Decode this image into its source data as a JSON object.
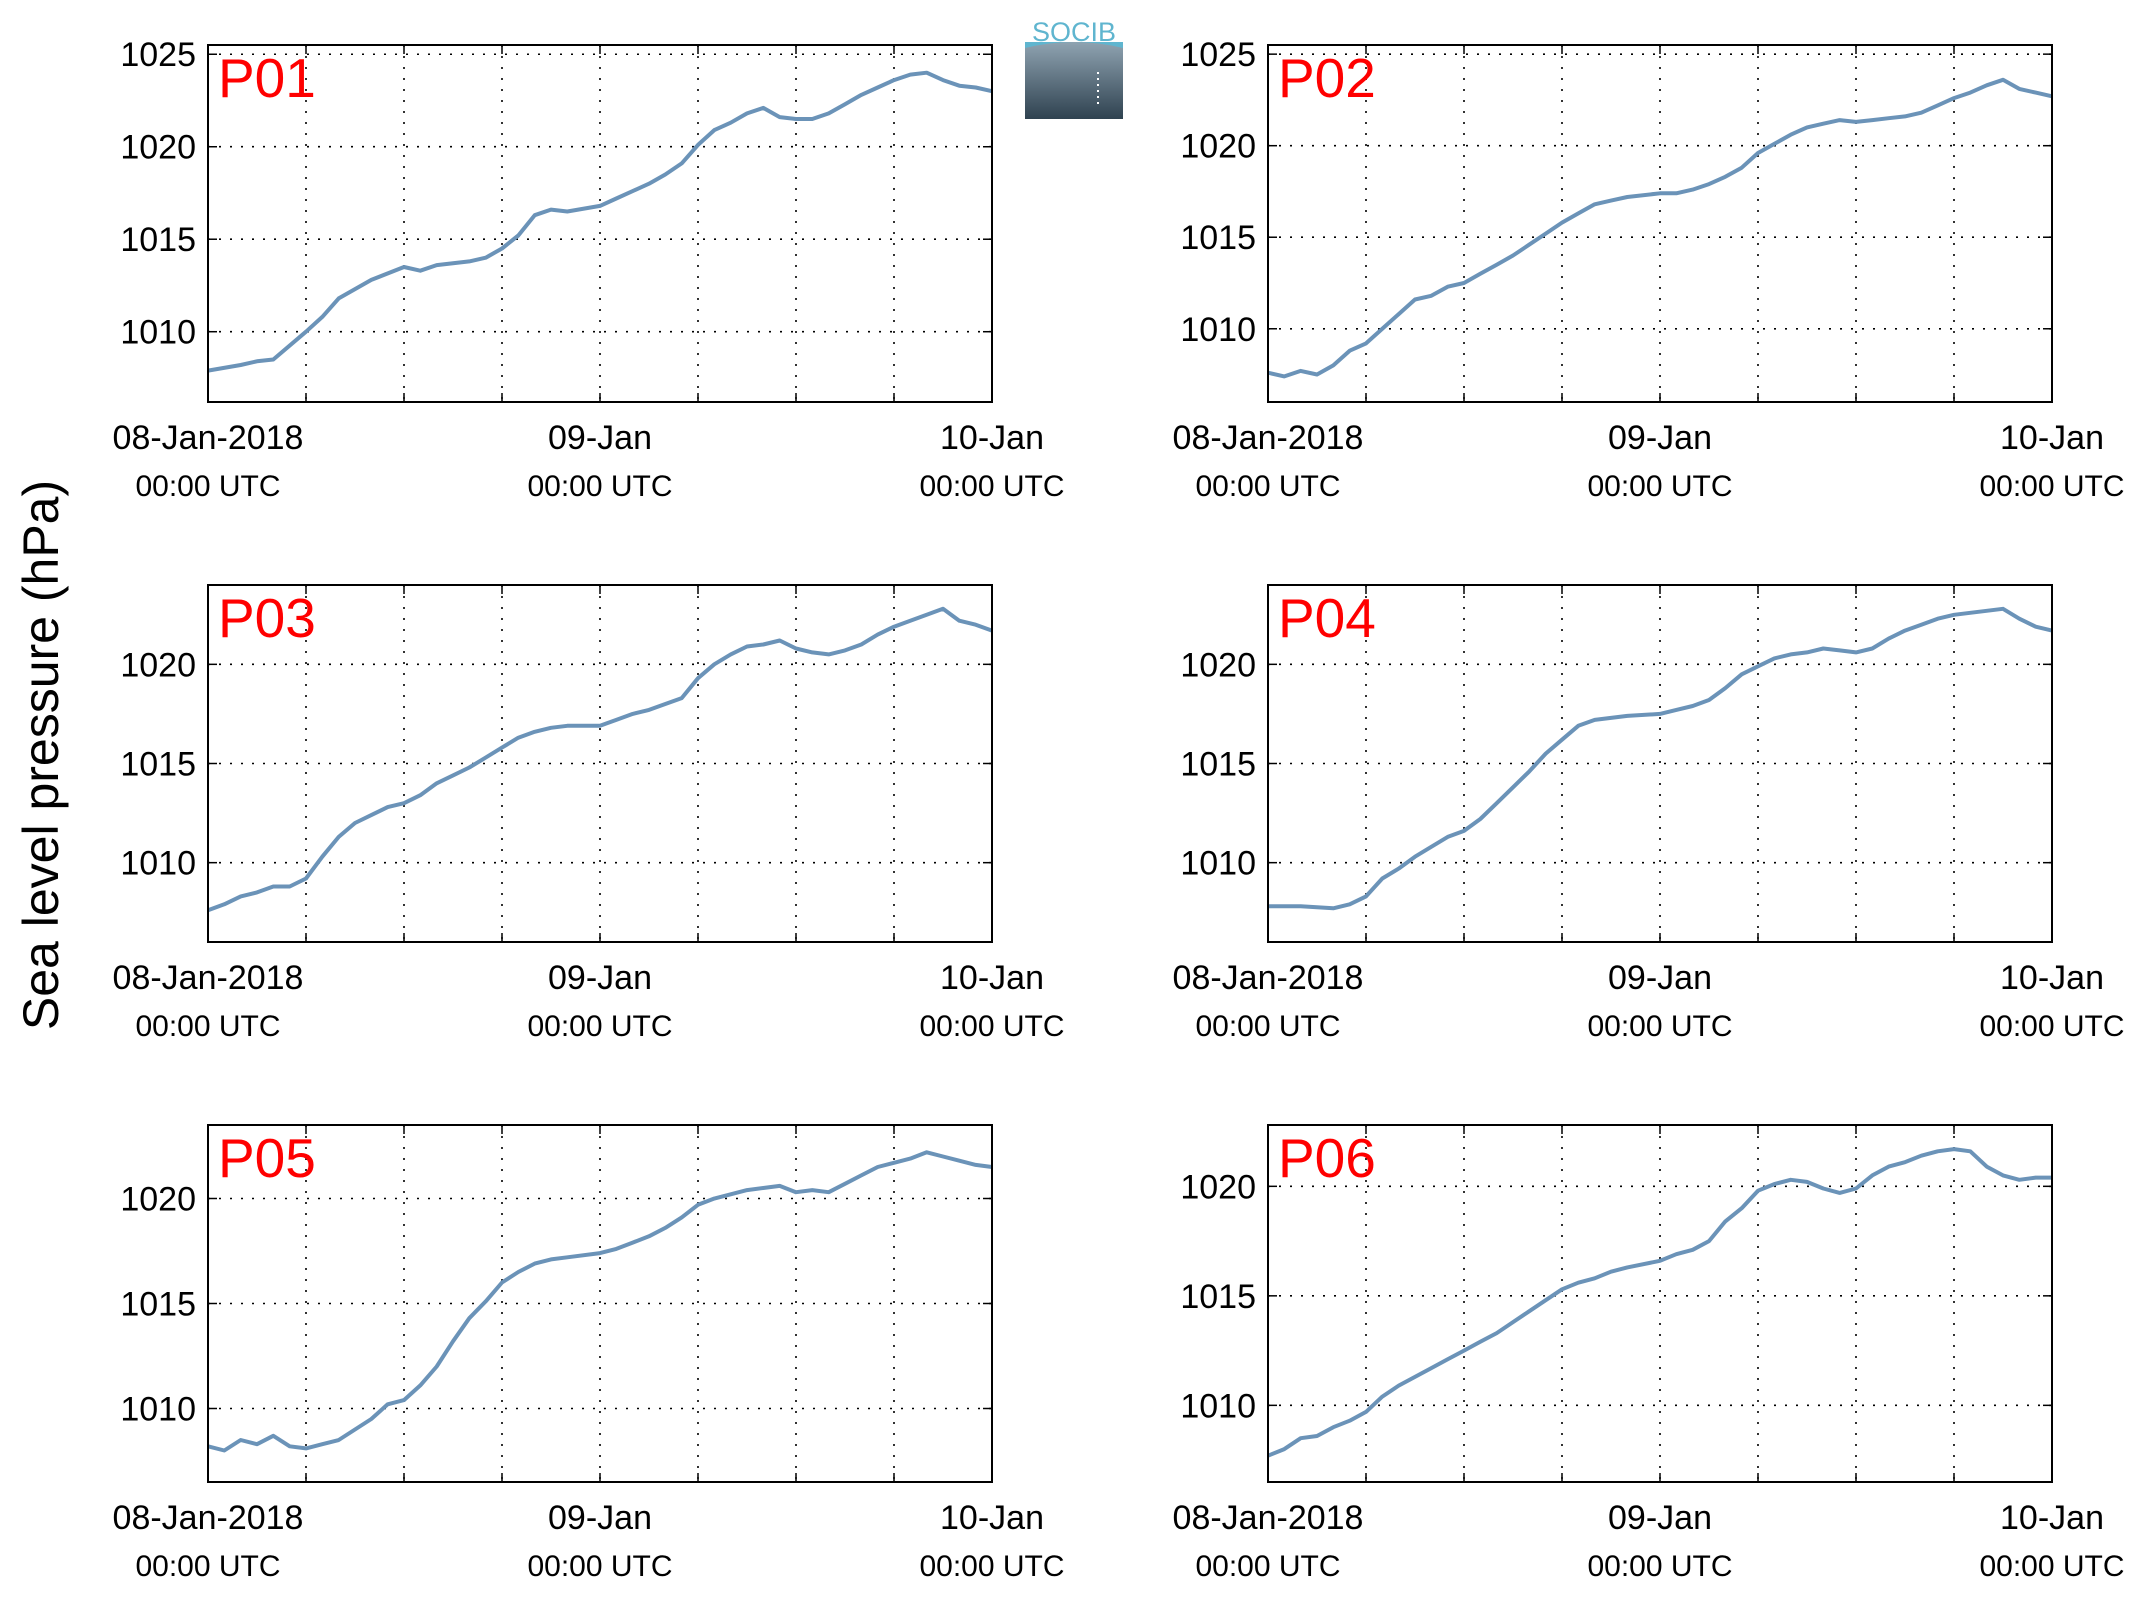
{
  "figure": {
    "ylabel": "Sea level pressure (hPa)",
    "logo_text": "SOCIB",
    "line_color": "#6b93b8",
    "panel_label_color": "#ff0000",
    "tick_labels": [
      {
        "x": 0,
        "line1": "08-Jan-2018",
        "line2": "00:00 UTC"
      },
      {
        "x": 24,
        "line1": "09-Jan",
        "line2": "00:00 UTC"
      },
      {
        "x": 48,
        "line1": "10-Jan",
        "line2": "00:00 UTC"
      }
    ],
    "x_unit": "hours since 08-Jan-2018 00:00 UTC"
  },
  "chart_data": [
    {
      "type": "line",
      "panel": "P01",
      "grid": true,
      "xlim": [
        0,
        48
      ],
      "ylim": [
        1006.2,
        1025.5
      ],
      "yticks": [
        1010,
        1015,
        1020,
        1025
      ],
      "x": [
        0,
        2,
        3,
        4,
        6,
        7,
        8,
        10,
        12,
        13,
        14,
        16,
        17,
        18,
        19,
        20,
        21,
        22,
        24,
        25,
        26,
        27,
        28,
        29,
        30,
        31,
        32,
        33,
        34,
        35,
        36,
        37,
        38,
        39,
        40,
        41,
        42,
        43,
        44,
        45,
        46,
        47,
        48
      ],
      "values": [
        1007.9,
        1008.2,
        1008.4,
        1008.5,
        1010.0,
        1010.8,
        1011.8,
        1012.8,
        1013.5,
        1013.3,
        1013.6,
        1013.8,
        1014.0,
        1014.5,
        1015.2,
        1016.3,
        1016.6,
        1016.5,
        1016.8,
        1017.2,
        1017.6,
        1018.0,
        1018.5,
        1019.1,
        1020.1,
        1020.9,
        1021.3,
        1021.8,
        1022.1,
        1021.6,
        1021.5,
        1021.5,
        1021.8,
        1022.3,
        1022.8,
        1023.2,
        1023.6,
        1023.9,
        1024.0,
        1023.6,
        1023.3,
        1023.2,
        1023.0
      ]
    },
    {
      "type": "line",
      "panel": "P02",
      "grid": true,
      "xlim": [
        0,
        48
      ],
      "ylim": [
        1006.0,
        1025.5
      ],
      "yticks": [
        1010,
        1015,
        1020,
        1025
      ],
      "x": [
        0,
        1,
        2,
        3,
        4,
        5,
        6,
        7,
        8,
        9,
        10,
        11,
        12,
        13,
        14,
        15,
        16,
        17,
        18,
        19,
        20,
        21,
        22,
        24,
        25,
        26,
        27,
        28,
        29,
        30,
        31,
        32,
        33,
        34,
        35,
        36,
        37,
        38,
        39,
        40,
        41,
        42,
        43,
        44,
        45,
        46,
        47,
        48
      ],
      "values": [
        1007.6,
        1007.4,
        1007.7,
        1007.5,
        1008.0,
        1008.8,
        1009.2,
        1010.0,
        1010.8,
        1011.6,
        1011.8,
        1012.3,
        1012.5,
        1013.0,
        1013.5,
        1014.0,
        1014.6,
        1015.2,
        1015.8,
        1016.3,
        1016.8,
        1017.0,
        1017.2,
        1017.4,
        1017.4,
        1017.6,
        1017.9,
        1018.3,
        1018.8,
        1019.6,
        1020.1,
        1020.6,
        1021.0,
        1021.2,
        1021.4,
        1021.3,
        1021.4,
        1021.5,
        1021.6,
        1021.8,
        1022.2,
        1022.6,
        1022.9,
        1023.3,
        1023.6,
        1023.1,
        1022.9,
        1022.7
      ]
    },
    {
      "type": "line",
      "panel": "P03",
      "grid": true,
      "xlim": [
        0,
        48
      ],
      "ylim": [
        1006.0,
        1024.0
      ],
      "yticks": [
        1010,
        1015,
        1020
      ],
      "x": [
        0,
        1,
        2,
        3,
        4,
        5,
        6,
        7,
        8,
        9,
        10,
        11,
        12,
        13,
        14,
        15,
        16,
        17,
        18,
        19,
        20,
        21,
        22,
        24,
        25,
        26,
        27,
        28,
        29,
        30,
        31,
        32,
        33,
        34,
        35,
        36,
        37,
        38,
        39,
        40,
        41,
        42,
        43,
        44,
        45,
        46,
        47,
        48
      ],
      "values": [
        1007.6,
        1007.9,
        1008.3,
        1008.5,
        1008.8,
        1008.8,
        1009.2,
        1010.3,
        1011.3,
        1012.0,
        1012.4,
        1012.8,
        1013.0,
        1013.4,
        1014.0,
        1014.4,
        1014.8,
        1015.3,
        1015.8,
        1016.3,
        1016.6,
        1016.8,
        1016.9,
        1016.9,
        1017.2,
        1017.5,
        1017.7,
        1018.0,
        1018.3,
        1019.3,
        1020.0,
        1020.5,
        1020.9,
        1021.0,
        1021.2,
        1020.8,
        1020.6,
        1020.5,
        1020.7,
        1021.0,
        1021.5,
        1021.9,
        1022.2,
        1022.5,
        1022.8,
        1022.2,
        1022.0,
        1021.7
      ]
    },
    {
      "type": "line",
      "panel": "P04",
      "grid": true,
      "xlim": [
        0,
        48
      ],
      "ylim": [
        1006.0,
        1024.0
      ],
      "yticks": [
        1010,
        1015,
        1020
      ],
      "x": [
        0,
        2,
        4,
        5,
        6,
        7,
        8,
        9,
        10,
        11,
        12,
        13,
        14,
        15,
        16,
        17,
        18,
        19,
        20,
        21,
        22,
        24,
        25,
        26,
        27,
        28,
        29,
        30,
        31,
        32,
        33,
        34,
        35,
        36,
        37,
        38,
        39,
        40,
        41,
        42,
        43,
        44,
        45,
        46,
        47,
        48
      ],
      "values": [
        1007.8,
        1007.8,
        1007.7,
        1007.9,
        1008.3,
        1009.2,
        1009.7,
        1010.3,
        1010.8,
        1011.3,
        1011.6,
        1012.2,
        1013.0,
        1013.8,
        1014.6,
        1015.5,
        1016.2,
        1016.9,
        1017.2,
        1017.3,
        1017.4,
        1017.5,
        1017.7,
        1017.9,
        1018.2,
        1018.8,
        1019.5,
        1019.9,
        1020.3,
        1020.5,
        1020.6,
        1020.8,
        1020.7,
        1020.6,
        1020.8,
        1021.3,
        1021.7,
        1022.0,
        1022.3,
        1022.5,
        1022.6,
        1022.7,
        1022.8,
        1022.3,
        1021.9,
        1021.7
      ]
    },
    {
      "type": "line",
      "panel": "P05",
      "grid": true,
      "xlim": [
        0,
        48
      ],
      "ylim": [
        1006.5,
        1023.5
      ],
      "yticks": [
        1010,
        1015,
        1020
      ],
      "x": [
        0,
        1,
        2,
        3,
        4,
        5,
        6,
        7,
        8,
        9,
        10,
        11,
        12,
        13,
        14,
        15,
        16,
        17,
        18,
        19,
        20,
        21,
        22,
        24,
        25,
        26,
        27,
        28,
        29,
        30,
        31,
        32,
        33,
        34,
        35,
        36,
        37,
        38,
        39,
        40,
        41,
        42,
        43,
        44,
        45,
        46,
        47,
        48
      ],
      "values": [
        1008.2,
        1008.0,
        1008.5,
        1008.3,
        1008.7,
        1008.2,
        1008.1,
        1008.3,
        1008.5,
        1009.0,
        1009.5,
        1010.2,
        1010.4,
        1011.1,
        1012.0,
        1013.2,
        1014.3,
        1015.1,
        1016.0,
        1016.5,
        1016.9,
        1017.1,
        1017.2,
        1017.4,
        1017.6,
        1017.9,
        1018.2,
        1018.6,
        1019.1,
        1019.7,
        1020.0,
        1020.2,
        1020.4,
        1020.5,
        1020.6,
        1020.3,
        1020.4,
        1020.3,
        1020.7,
        1021.1,
        1021.5,
        1021.7,
        1021.9,
        1022.2,
        1022.0,
        1021.8,
        1021.6,
        1021.5
      ]
    },
    {
      "type": "line",
      "panel": "P06",
      "grid": true,
      "xlim": [
        0,
        48
      ],
      "ylim": [
        1006.5,
        1022.8
      ],
      "yticks": [
        1010,
        1015,
        1020
      ],
      "x": [
        0,
        1,
        2,
        3,
        4,
        5,
        6,
        7,
        8,
        9,
        10,
        11,
        12,
        13,
        14,
        15,
        16,
        17,
        18,
        19,
        20,
        21,
        22,
        24,
        25,
        26,
        27,
        28,
        29,
        30,
        31,
        32,
        33,
        34,
        35,
        36,
        37,
        38,
        39,
        40,
        41,
        42,
        43,
        44,
        45,
        46,
        47,
        48
      ],
      "values": [
        1007.7,
        1008.0,
        1008.5,
        1008.6,
        1009.0,
        1009.3,
        1009.7,
        1010.4,
        1010.9,
        1011.3,
        1011.7,
        1012.1,
        1012.5,
        1012.9,
        1013.3,
        1013.8,
        1014.3,
        1014.8,
        1015.3,
        1015.6,
        1015.8,
        1016.1,
        1016.3,
        1016.6,
        1016.9,
        1017.1,
        1017.5,
        1018.4,
        1019.0,
        1019.8,
        1020.1,
        1020.3,
        1020.2,
        1019.9,
        1019.7,
        1019.9,
        1020.5,
        1020.9,
        1021.1,
        1021.4,
        1021.6,
        1021.7,
        1021.6,
        1020.9,
        1020.5,
        1020.3,
        1020.4,
        1020.4
      ]
    }
  ]
}
